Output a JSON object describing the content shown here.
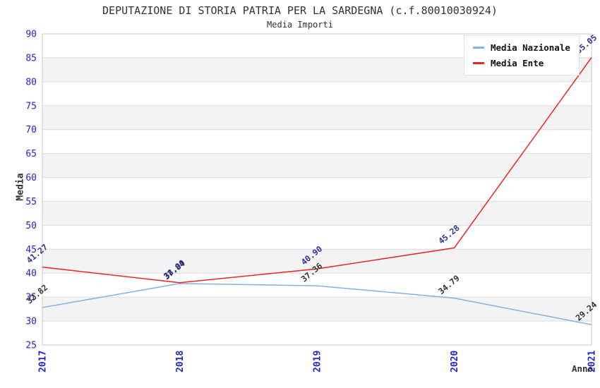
{
  "chart": {
    "title": "DEPUTAZIONE DI STORIA PATRIA PER LA SARDEGNA (c.f.80010030924)",
    "subtitle": "Media Importi",
    "y_axis_title": "Media",
    "x_axis_title": "Anno",
    "legend": [
      "Media Nazionale",
      "Media Ente"
    ]
  },
  "chart_data": {
    "type": "line",
    "title": "DEPUTAZIONE DI STORIA PATRIA PER LA SARDEGNA (c.f.80010030924)",
    "subtitle": "Media Importi",
    "categories": [
      "2017",
      "2018",
      "2019",
      "2020",
      "2021"
    ],
    "series": [
      {
        "name": "Media Nazionale",
        "color": "#7fb2e5",
        "label_color": "#333333",
        "values": [
          32.82,
          37.84,
          37.36,
          34.79,
          29.24
        ]
      },
      {
        "name": "Media Ente",
        "color": "#ed2424",
        "label_color": "#333399",
        "values": [
          41.27,
          38.0,
          40.9,
          45.28,
          85.05
        ]
      }
    ],
    "xlabel": "Anno",
    "ylabel": "Media",
    "ylim": [
      25,
      90
    ],
    "ytick_step": 5,
    "yticks": [
      25,
      30,
      35,
      40,
      45,
      50,
      55,
      60,
      65,
      70,
      75,
      80,
      85,
      90
    ],
    "grid": true,
    "legend_position": "top-right",
    "colors": {
      "tick_label": "#2323cf",
      "band_gray": "#f3f3f3",
      "band_white": "#ffffff",
      "gridline": "#dedede",
      "plot_border": "#c9c9c9",
      "title_text": "#333333"
    }
  }
}
